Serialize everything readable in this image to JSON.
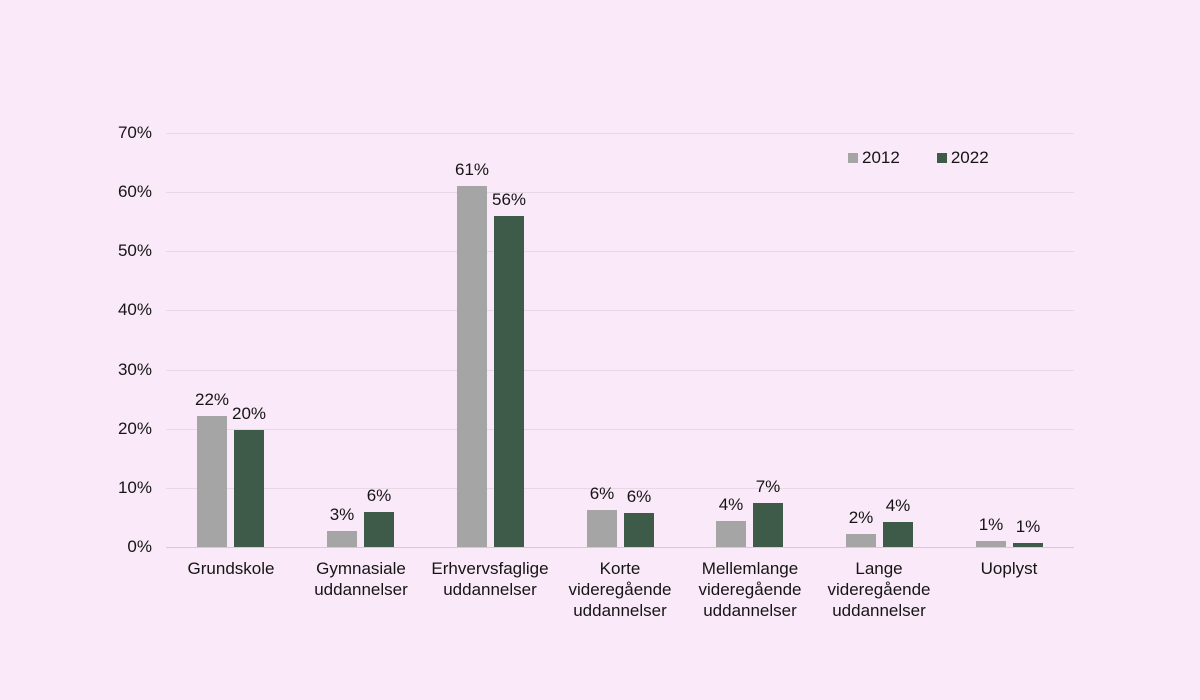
{
  "colors": {
    "background": "#fae9f8",
    "gridline": "#e8d8e5",
    "axis_line": "#d6c9d4",
    "text": "#151515"
  },
  "chart_data": {
    "type": "bar",
    "title": "",
    "xlabel": "",
    "ylabel": "",
    "ylim": [
      0,
      70
    ],
    "y_tick_step": 10,
    "y_ticks": [
      "0%",
      "10%",
      "20%",
      "30%",
      "40%",
      "50%",
      "60%",
      "70%"
    ],
    "grid": true,
    "legend_position": "top-right",
    "categories": [
      "Grundskole",
      "Gymnasiale uddannelser",
      "Erhvervsfaglige uddannelser",
      "Korte videregående uddannelser",
      "Mellemlange videregående uddannelser",
      "Lange videregående uddannelser",
      "Uoplyst"
    ],
    "category_label_lines": [
      [
        "Grundskole"
      ],
      [
        "Gymnasiale",
        "uddannelser"
      ],
      [
        "Erhvervsfaglige",
        "uddannelser"
      ],
      [
        "Korte",
        "videregående",
        "uddannelser"
      ],
      [
        "Mellemlange",
        "videregående",
        "uddannelser"
      ],
      [
        "Lange",
        "videregående",
        "uddannelser"
      ],
      [
        "Uoplyst"
      ]
    ],
    "series": [
      {
        "name": "2012",
        "color": "#a5a5a5",
        "values": [
          22.2,
          2.7,
          61.0,
          6.3,
          4.4,
          2.2,
          1.0
        ],
        "labels": [
          "22%",
          "3%",
          "61%",
          "6%",
          "4%",
          "2%",
          "1%"
        ]
      },
      {
        "name": "2022",
        "color": "#3e5a48",
        "values": [
          19.8,
          5.9,
          56.0,
          5.8,
          7.4,
          4.3,
          0.6
        ],
        "labels": [
          "20%",
          "6%",
          "56%",
          "6%",
          "7%",
          "4%",
          "1%"
        ]
      }
    ]
  }
}
